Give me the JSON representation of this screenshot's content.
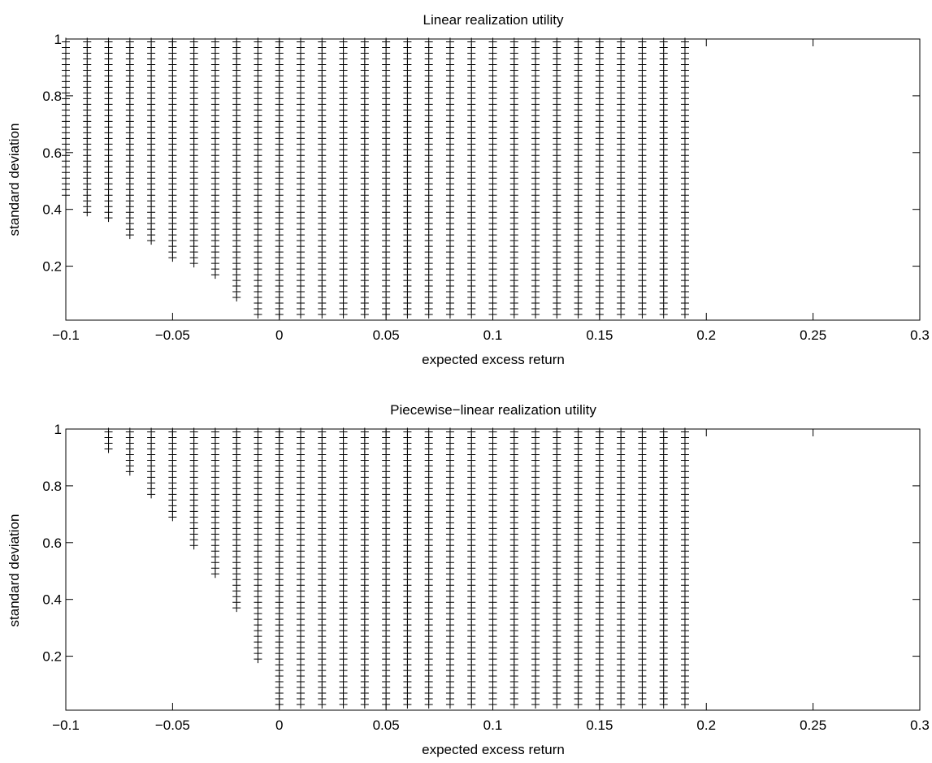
{
  "chart_data": [
    {
      "type": "scatter",
      "title": "Linear realization utility",
      "xlabel": "expected excess return",
      "ylabel": "standard deviation",
      "xlim": [
        -0.1,
        0.3
      ],
      "ylim": [
        0.01,
        1.0
      ],
      "xticks": [
        -0.1,
        -0.05,
        0,
        0.05,
        0.1,
        0.15,
        0.2,
        0.25,
        0.3
      ],
      "xtick_labels": [
        "−0.1",
        "−0.05",
        "0",
        "0.05",
        "0.1",
        "0.15",
        "0.2",
        "0.25",
        "0.3"
      ],
      "yticks": [
        0.2,
        0.4,
        0.6,
        0.8,
        1.0
      ],
      "ytick_labels": [
        "0.2",
        "0.4",
        "0.6",
        "0.8",
        "1"
      ],
      "grid": false,
      "marker": "+",
      "marker_color": "#000000",
      "y_grid": {
        "start": 0.03,
        "step": 0.02,
        "end": 1.0
      },
      "series": [
        {
          "columns": [
            {
              "x": -0.1,
              "ymin": 0.45
            },
            {
              "x": -0.09,
              "ymin": 0.39
            },
            {
              "x": -0.08,
              "ymin": 0.36
            },
            {
              "x": -0.07,
              "ymin": 0.31
            },
            {
              "x": -0.06,
              "ymin": 0.28
            },
            {
              "x": -0.05,
              "ymin": 0.23
            },
            {
              "x": -0.04,
              "ymin": 0.21
            },
            {
              "x": -0.03,
              "ymin": 0.16
            },
            {
              "x": -0.02,
              "ymin": 0.08
            },
            {
              "x": -0.01,
              "ymin": 0.03
            },
            {
              "x": 0.0,
              "ymin": 0.03
            },
            {
              "x": 0.01,
              "ymin": 0.03
            },
            {
              "x": 0.02,
              "ymin": 0.03
            },
            {
              "x": 0.03,
              "ymin": 0.03
            },
            {
              "x": 0.04,
              "ymin": 0.03
            },
            {
              "x": 0.05,
              "ymin": 0.03
            },
            {
              "x": 0.06,
              "ymin": 0.03
            },
            {
              "x": 0.07,
              "ymin": 0.03
            },
            {
              "x": 0.08,
              "ymin": 0.03
            },
            {
              "x": 0.09,
              "ymin": 0.03
            },
            {
              "x": 0.1,
              "ymin": 0.03
            },
            {
              "x": 0.11,
              "ymin": 0.03
            },
            {
              "x": 0.12,
              "ymin": 0.03
            },
            {
              "x": 0.13,
              "ymin": 0.03
            },
            {
              "x": 0.14,
              "ymin": 0.03
            },
            {
              "x": 0.15,
              "ymin": 0.03
            },
            {
              "x": 0.16,
              "ymin": 0.03
            },
            {
              "x": 0.17,
              "ymin": 0.03
            },
            {
              "x": 0.18,
              "ymin": 0.03
            },
            {
              "x": 0.19,
              "ymin": 0.03
            }
          ]
        }
      ]
    },
    {
      "type": "scatter",
      "title": "Piecewise−linear realization utility",
      "xlabel": "expected excess return",
      "ylabel": "standard deviation",
      "xlim": [
        -0.1,
        0.3
      ],
      "ylim": [
        0.01,
        1.0
      ],
      "xticks": [
        -0.1,
        -0.05,
        0,
        0.05,
        0.1,
        0.15,
        0.2,
        0.25,
        0.3
      ],
      "xtick_labels": [
        "−0.1",
        "−0.05",
        "0",
        "0.05",
        "0.1",
        "0.15",
        "0.2",
        "0.25",
        "0.3"
      ],
      "yticks": [
        0.2,
        0.4,
        0.6,
        0.8,
        1.0
      ],
      "ytick_labels": [
        "0.2",
        "0.4",
        "0.6",
        "0.8",
        "1"
      ],
      "grid": false,
      "marker": "+",
      "marker_color": "#000000",
      "y_grid": {
        "start": 0.03,
        "step": 0.02,
        "end": 1.0
      },
      "series": [
        {
          "columns": [
            {
              "x": -0.09,
              "ymin": 1.0
            },
            {
              "x": -0.08,
              "ymin": 0.92
            },
            {
              "x": -0.07,
              "ymin": 0.85
            },
            {
              "x": -0.06,
              "ymin": 0.77
            },
            {
              "x": -0.05,
              "ymin": 0.69
            },
            {
              "x": -0.04,
              "ymin": 0.59
            },
            {
              "x": -0.03,
              "ymin": 0.49
            },
            {
              "x": -0.02,
              "ymin": 0.37
            },
            {
              "x": -0.01,
              "ymin": 0.18
            },
            {
              "x": 0.0,
              "ymin": 0.03
            },
            {
              "x": 0.01,
              "ymin": 0.03
            },
            {
              "x": 0.02,
              "ymin": 0.03
            },
            {
              "x": 0.03,
              "ymin": 0.03
            },
            {
              "x": 0.04,
              "ymin": 0.03
            },
            {
              "x": 0.05,
              "ymin": 0.03
            },
            {
              "x": 0.06,
              "ymin": 0.03
            },
            {
              "x": 0.07,
              "ymin": 0.03
            },
            {
              "x": 0.08,
              "ymin": 0.03
            },
            {
              "x": 0.09,
              "ymin": 0.03
            },
            {
              "x": 0.1,
              "ymin": 0.03
            },
            {
              "x": 0.11,
              "ymin": 0.03
            },
            {
              "x": 0.12,
              "ymin": 0.03
            },
            {
              "x": 0.13,
              "ymin": 0.03
            },
            {
              "x": 0.14,
              "ymin": 0.03
            },
            {
              "x": 0.15,
              "ymin": 0.03
            },
            {
              "x": 0.16,
              "ymin": 0.03
            },
            {
              "x": 0.17,
              "ymin": 0.03
            },
            {
              "x": 0.18,
              "ymin": 0.03
            },
            {
              "x": 0.19,
              "ymin": 0.03
            }
          ]
        }
      ]
    }
  ]
}
